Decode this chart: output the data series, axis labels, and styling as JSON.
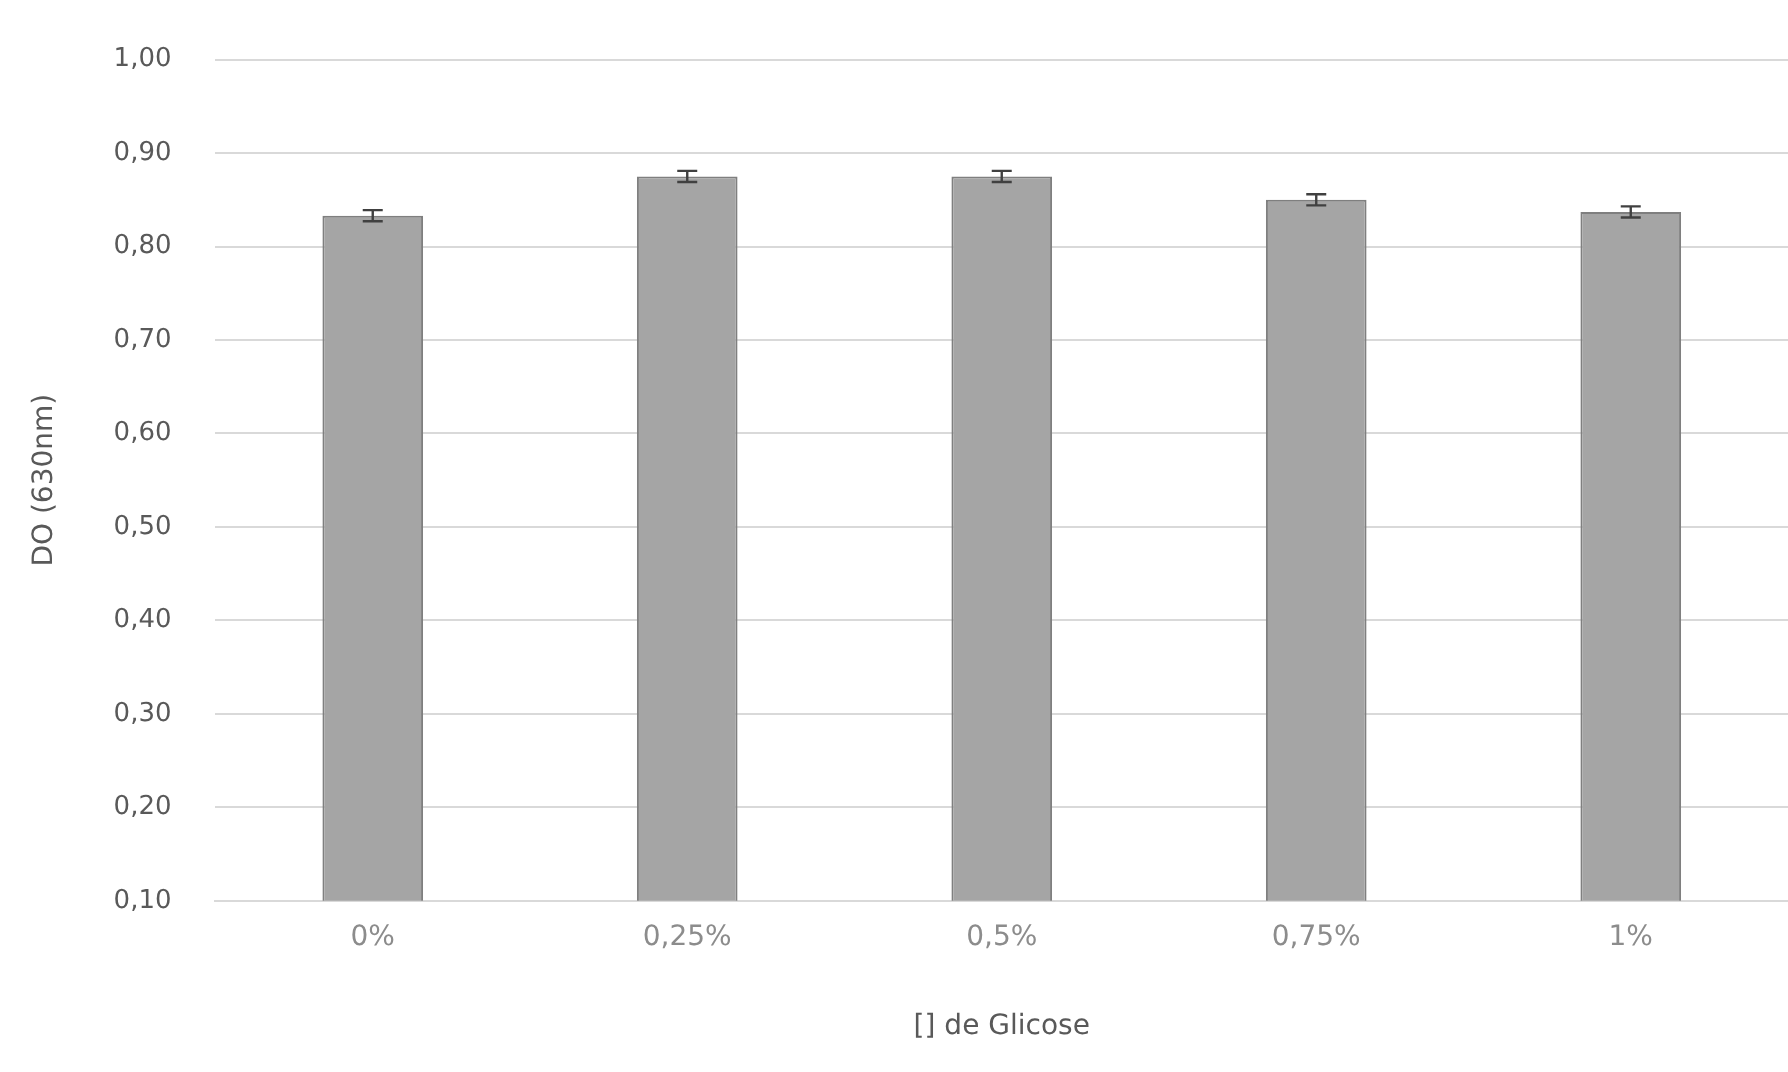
{
  "chart_data": {
    "type": "bar",
    "xlabel": "[] de Glicose",
    "ylabel": "DO (630nm)",
    "categories": [
      "0%",
      "0,25%",
      "0,5%",
      "0,75%",
      "1%"
    ],
    "values": [
      0.833,
      0.875,
      0.875,
      0.85,
      0.837
    ],
    "errors": [
      0.006,
      0.006,
      0.006,
      0.006,
      0.006
    ],
    "color": "#a5a5a5",
    "ylim": [
      0.1,
      1.0
    ],
    "yticks": [
      {
        "value": 0.1,
        "label": "0,10"
      },
      {
        "value": 0.2,
        "label": "0,20"
      },
      {
        "value": 0.3,
        "label": "0,30"
      },
      {
        "value": 0.4,
        "label": "0,40"
      },
      {
        "value": 0.5,
        "label": "0,50"
      },
      {
        "value": 0.6,
        "label": "0,60"
      },
      {
        "value": 0.7,
        "label": "0,70"
      },
      {
        "value": 0.8,
        "label": "0,80"
      },
      {
        "value": 0.9,
        "label": "0,90"
      },
      {
        "value": 1.0,
        "label": "1,00"
      }
    ],
    "grid": "y",
    "legend": false
  }
}
